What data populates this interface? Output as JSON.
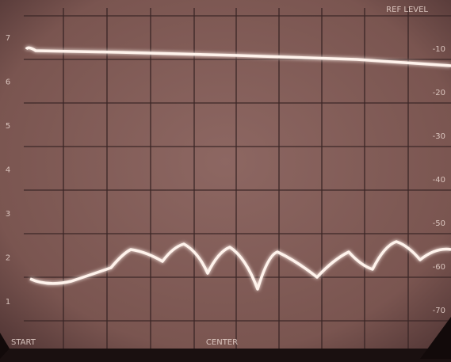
{
  "screen": {
    "ref_label": "REF LEVEL",
    "left_scale": [
      "7",
      "6",
      "5",
      "4",
      "3",
      "2",
      "1"
    ],
    "right_scale": [
      "-10",
      "-20",
      "-30",
      "-40",
      "-50",
      "-60",
      "-70"
    ],
    "bottom_left": "START",
    "bottom_center": "CENTER"
  }
}
